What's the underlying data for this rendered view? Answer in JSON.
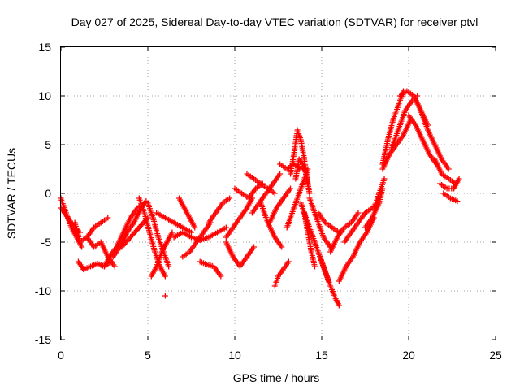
{
  "chart_data": {
    "type": "scatter",
    "title": "Day 027 of 2025, Sidereal Day-to-day VTEC variation (SDTVAR) for receiver ptvl",
    "xlabel": "GPS time / hours",
    "ylabel": "SDTVAR / TECUs",
    "xlim": [
      0,
      25
    ],
    "ylim": [
      -15,
      15
    ],
    "x_ticks": [
      "0",
      "5",
      "10",
      "15",
      "20",
      "25"
    ],
    "y_ticks": [
      "-15",
      "-10",
      "-5",
      "0",
      "5",
      "10",
      "15"
    ],
    "grid": true,
    "marker": "+",
    "color": "#ff0000",
    "series": [
      {
        "name": "s1",
        "x": [
          0.0,
          0.3,
          0.6,
          0.9,
          1.2
        ],
        "y": [
          -0.5,
          -2.0,
          -3.5,
          -4.5,
          -5.5
        ]
      },
      {
        "name": "s2",
        "x": [
          0.0,
          0.4,
          0.8,
          1.1
        ],
        "y": [
          -1.5,
          -2.5,
          -3.5,
          -4.0
        ]
      },
      {
        "name": "s3",
        "x": [
          0.8,
          1.1,
          1.5,
          1.9,
          2.3,
          2.7,
          3.1
        ],
        "y": [
          -3.0,
          -5.0,
          -4.5,
          -5.5,
          -5.0,
          -6.5,
          -7.5
        ]
      },
      {
        "name": "s4",
        "x": [
          1.0,
          1.3,
          1.7,
          2.1,
          2.5,
          2.9
        ],
        "y": [
          -7.0,
          -7.8,
          -7.5,
          -7.2,
          -7.5,
          -7.0
        ]
      },
      {
        "name": "s5",
        "x": [
          1.5,
          1.9,
          2.3,
          2.7
        ],
        "y": [
          -4.5,
          -3.5,
          -3.0,
          -2.5
        ]
      },
      {
        "name": "s6",
        "x": [
          2.5,
          2.8,
          3.2,
          3.6,
          4.0,
          4.4,
          4.8
        ],
        "y": [
          -7.5,
          -6.5,
          -5.5,
          -4.0,
          -2.5,
          -1.5,
          -1.0
        ]
      },
      {
        "name": "s7",
        "x": [
          3.0,
          3.4,
          3.8,
          4.2,
          4.6,
          4.9
        ],
        "y": [
          -6.5,
          -5.5,
          -4.0,
          -3.0,
          -1.5,
          -0.8
        ]
      },
      {
        "name": "s8",
        "x": [
          3.5,
          4.0,
          4.5,
          5.0
        ],
        "y": [
          -5.5,
          -4.5,
          -3.5,
          -2.5
        ]
      },
      {
        "name": "s9",
        "x": [
          4.5,
          4.8,
          5.1,
          5.4,
          5.7,
          6.0
        ],
        "y": [
          -0.5,
          -2.0,
          -4.0,
          -6.0,
          -7.5,
          -8.5
        ]
      },
      {
        "name": "s10",
        "x": [
          5.0,
          5.3,
          5.6,
          5.9,
          6.2
        ],
        "y": [
          -1.0,
          -2.5,
          -4.5,
          -6.0,
          -7.5
        ]
      },
      {
        "name": "s11",
        "x": [
          5.2,
          5.5,
          5.8,
          6.1,
          6.4
        ],
        "y": [
          -8.5,
          -7.5,
          -6.0,
          -5.0,
          -4.0
        ]
      },
      {
        "name": "s12",
        "x": [
          5.5,
          6.0,
          6.5,
          7.0,
          7.5
        ],
        "y": [
          -2.0,
          -2.5,
          -3.0,
          -3.5,
          -4.0
        ]
      },
      {
        "name": "s13",
        "x": [
          6.0
        ],
        "y": [
          -10.5
        ]
      },
      {
        "name": "s14",
        "x": [
          6.5,
          7.0,
          7.5,
          8.0,
          8.5,
          9.0,
          9.5
        ],
        "y": [
          -4.5,
          -4.0,
          -4.5,
          -4.8,
          -4.5,
          -4.0,
          -3.5
        ]
      },
      {
        "name": "s15",
        "x": [
          6.8,
          7.1,
          7.4,
          7.7
        ],
        "y": [
          -0.5,
          -1.5,
          -2.5,
          -3.5
        ]
      },
      {
        "name": "s16",
        "x": [
          7.0,
          7.4,
          7.8,
          8.2,
          8.6
        ],
        "y": [
          -6.5,
          -6.0,
          -5.0,
          -4.0,
          -3.0
        ]
      },
      {
        "name": "s17",
        "x": [
          8.0,
          8.4,
          8.8,
          9.2
        ],
        "y": [
          -7.0,
          -7.3,
          -7.5,
          -8.5
        ]
      },
      {
        "name": "s18",
        "x": [
          8.5,
          8.9,
          9.3,
          9.7
        ],
        "y": [
          -3.0,
          -2.0,
          -1.0,
          -0.5
        ]
      },
      {
        "name": "s19",
        "x": [
          9.5,
          9.9,
          10.3,
          10.7,
          11.1
        ],
        "y": [
          -5.0,
          -6.5,
          -7.5,
          -6.5,
          -5.5
        ]
      },
      {
        "name": "s20",
        "x": [
          9.5,
          9.9,
          10.3,
          10.7,
          11.0
        ],
        "y": [
          -4.5,
          -3.5,
          -2.5,
          -1.5,
          -0.5
        ]
      },
      {
        "name": "s21",
        "x": [
          10.0,
          10.4,
          10.8,
          11.2,
          11.6
        ],
        "y": [
          0.5,
          0.0,
          -0.5,
          0.5,
          1.0
        ]
      },
      {
        "name": "s22",
        "x": [
          10.7,
          11.1,
          11.5,
          11.9,
          12.3
        ],
        "y": [
          2.0,
          1.5,
          1.0,
          0.5,
          0.0
        ]
      },
      {
        "name": "s23",
        "x": [
          11.0,
          11.4,
          11.8,
          12.2,
          12.6
        ],
        "y": [
          -2.0,
          -1.0,
          0.0,
          1.0,
          2.0
        ]
      },
      {
        "name": "s24",
        "x": [
          11.5,
          11.9,
          12.3,
          12.7
        ],
        "y": [
          -1.0,
          -3.0,
          -4.5,
          -5.5
        ]
      },
      {
        "name": "s25",
        "x": [
          12.0,
          12.4,
          12.8,
          13.2
        ],
        "y": [
          -3.0,
          -1.5,
          -0.5,
          0.5
        ]
      },
      {
        "name": "s26",
        "x": [
          12.3,
          12.5,
          12.7,
          12.9,
          13.1
        ],
        "y": [
          -9.5,
          -8.5,
          -8.0,
          -7.5,
          -7.0
        ]
      },
      {
        "name": "s27",
        "x": [
          12.6,
          13.0,
          13.4,
          13.8
        ],
        "y": [
          3.0,
          2.5,
          3.0,
          2.5
        ]
      },
      {
        "name": "s28",
        "x": [
          13.0,
          13.4,
          13.8,
          14.2
        ],
        "y": [
          -3.5,
          -1.5,
          0.5,
          2.5
        ]
      },
      {
        "name": "s29",
        "x": [
          13.2,
          13.4,
          13.6,
          13.8,
          14.0,
          14.2
        ],
        "y": [
          2.0,
          4.0,
          6.5,
          5.5,
          3.5,
          1.0
        ]
      },
      {
        "name": "s30",
        "x": [
          13.5,
          13.7,
          13.9,
          14.1,
          14.3
        ],
        "y": [
          1.5,
          3.5,
          3.0,
          2.0,
          0.0
        ]
      },
      {
        "name": "s31",
        "x": [
          13.8,
          14.2,
          14.6,
          15.0,
          15.4
        ],
        "y": [
          -1.0,
          -3.0,
          -5.0,
          -7.0,
          -9.0
        ]
      },
      {
        "name": "s32",
        "x": [
          14.0,
          14.2,
          14.4,
          14.6
        ],
        "y": [
          -2.0,
          -4.0,
          -6.0,
          -7.5
        ]
      },
      {
        "name": "s33",
        "x": [
          14.3,
          14.7,
          15.1,
          15.5
        ],
        "y": [
          -0.5,
          -2.5,
          -4.5,
          -5.5
        ]
      },
      {
        "name": "s34",
        "x": [
          14.8,
          15.2,
          15.6,
          16.0
        ],
        "y": [
          -2.0,
          -3.0,
          -3.5,
          -4.0
        ]
      },
      {
        "name": "s35",
        "x": [
          14.9,
          15.2,
          15.5,
          15.8,
          16.0
        ],
        "y": [
          -6.5,
          -8.0,
          -9.5,
          -10.8,
          -11.5
        ]
      },
      {
        "name": "s36",
        "x": [
          15.5,
          15.9,
          16.3,
          16.7,
          17.1
        ],
        "y": [
          -6.0,
          -4.5,
          -3.5,
          -3.0,
          -2.0
        ]
      },
      {
        "name": "s37",
        "x": [
          16.0,
          16.4,
          16.8,
          17.2,
          17.6,
          18.0
        ],
        "y": [
          -9.0,
          -7.5,
          -6.5,
          -5.0,
          -4.0,
          -2.5
        ]
      },
      {
        "name": "s38",
        "x": [
          16.3,
          16.7,
          17.1,
          17.5,
          17.9,
          18.3
        ],
        "y": [
          -5.0,
          -4.0,
          -3.0,
          -2.0,
          -1.5,
          -1.0
        ]
      },
      {
        "name": "s39",
        "x": [
          17.5,
          17.9,
          18.3,
          18.5
        ],
        "y": [
          -3.5,
          -2.5,
          -1.0,
          0.5
        ]
      },
      {
        "name": "s40",
        "x": [
          18.0,
          18.2,
          18.4,
          18.6
        ],
        "y": [
          -1.5,
          -0.5,
          0.5,
          1.5
        ]
      },
      {
        "name": "s41",
        "x": [
          18.5,
          18.8,
          19.1,
          19.4,
          19.7
        ],
        "y": [
          3.0,
          5.5,
          7.5,
          9.0,
          10.5
        ]
      },
      {
        "name": "s42",
        "x": [
          18.5,
          18.9,
          19.3,
          19.7,
          20.1
        ],
        "y": [
          2.5,
          4.0,
          5.0,
          6.0,
          7.5
        ]
      },
      {
        "name": "s43",
        "x": [
          19.0,
          19.4,
          19.8,
          20.2,
          20.5
        ],
        "y": [
          4.5,
          6.5,
          8.5,
          9.5,
          10.0
        ]
      },
      {
        "name": "s44",
        "x": [
          19.5,
          19.9,
          20.3,
          20.7,
          21.1
        ],
        "y": [
          10.0,
          10.5,
          10.0,
          8.5,
          7.0
        ]
      },
      {
        "name": "s45",
        "x": [
          20.0,
          20.4,
          20.8,
          21.2,
          21.6
        ],
        "y": [
          8.0,
          7.0,
          5.5,
          4.0,
          3.0
        ]
      },
      {
        "name": "s46",
        "x": [
          20.3,
          20.7,
          21.1,
          21.5,
          21.9,
          22.3
        ],
        "y": [
          10.0,
          8.5,
          6.5,
          5.0,
          3.5,
          2.5
        ]
      },
      {
        "name": "s47",
        "x": [
          21.5,
          21.9,
          22.3,
          22.7
        ],
        "y": [
          3.5,
          2.0,
          1.5,
          1.0
        ]
      },
      {
        "name": "s48",
        "x": [
          21.8,
          22.2,
          22.6,
          22.9
        ],
        "y": [
          1.0,
          0.5,
          0.5,
          1.5
        ]
      },
      {
        "name": "s49",
        "x": [
          22.0,
          22.4,
          22.8
        ],
        "y": [
          0.0,
          -0.5,
          -0.8
        ]
      }
    ]
  }
}
